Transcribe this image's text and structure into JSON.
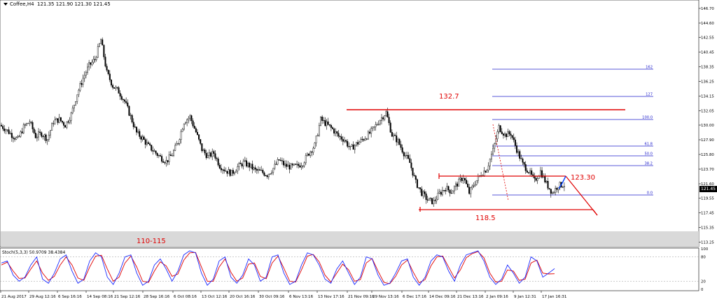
{
  "chart_title": {
    "symbol_tf": "Coffee,H4",
    "ohlc": "121.35 121.90 121.30 121.45"
  },
  "current_price": "121.45",
  "annotations": {
    "resistance_label": "132.7",
    "support_label": "118.5",
    "target_label": "123.30",
    "zone_label": "110-115"
  },
  "fib_levels": [
    "162",
    "127",
    "100.0",
    "61.8",
    "50.0",
    "38.2",
    "0.0"
  ],
  "stochastic": {
    "label": "Stoch(5,3,3) 50.9709 38.4384",
    "levels": [
      "100",
      "80",
      "20",
      "0"
    ]
  },
  "chart_data": [
    {
      "type": "candlestick",
      "y_ticks": [
        "146.70",
        "144.60",
        "142.55",
        "140.45",
        "138.35",
        "136.25",
        "134.15",
        "132.05",
        "130.00",
        "127.90",
        "125.80",
        "123.70",
        "121.60",
        "119.55",
        "117.45",
        "115.35",
        "113.25"
      ],
      "x_ticks": [
        "21 Aug 2017",
        "29 Aug 12:16",
        "6 Sep 16:16",
        "14 Sep 08:16",
        "21 Sep 12:16",
        "28 Sep 16:16",
        "6 Oct 08:16",
        "13 Oct 12:16",
        "20 Oct 16:16",
        "30 Oct 09:16",
        "6 Nov 13:16",
        "13 Nov 17:16",
        "21 Nov 09:16",
        "29 Nov 13:16",
        "6 Dec 17:16",
        "14 Dec 09:16",
        "21 Dec 13:16",
        "2 Jan 09:16",
        "9 Jan 12:31",
        "17 Jan 16:31"
      ],
      "ylim": [
        112.6,
        147.9
      ],
      "closes_sampled": [
        130.0,
        129.4,
        128.6,
        127.9,
        129.7,
        130.5,
        128.4,
        128.8,
        128.0,
        130.5,
        130.8,
        130.0,
        131.5,
        134.5,
        136.7,
        138.5,
        139.4,
        142.2,
        137.5,
        135.6,
        134.8,
        133.4,
        131.2,
        128.9,
        128.1,
        127.0,
        126.2,
        125.4,
        124.8,
        125.8,
        127.6,
        130.5,
        131.2,
        129.0,
        126.5,
        125.5,
        126.0,
        124.2,
        123.5,
        123.1,
        124.0,
        124.6,
        124.2,
        123.5,
        123.3,
        122.9,
        123.8,
        125.0,
        124.2,
        124.0,
        124.1,
        124.6,
        126.0,
        127.1,
        130.8,
        130.1,
        129.4,
        128.4,
        127.9,
        126.6,
        127.3,
        127.9,
        128.6,
        129.6,
        130.8,
        131.8,
        128.6,
        127.7,
        126.0,
        124.6,
        121.8,
        120.3,
        119.3,
        119.0,
        120.2,
        121.0,
        120.5,
        121.6,
        122.6,
        120.3,
        121.8,
        123.0,
        123.8,
        126.4,
        129.7,
        128.6,
        128.8,
        126.5,
        124.4,
        123.4,
        122.0,
        123.4,
        121.6,
        120.3,
        121.4,
        121.45
      ],
      "fib_prices": {
        "162": 138.0,
        "127": 134.1,
        "100.0": 130.8,
        "61.8": 127.0,
        "50.0": 125.6,
        "38.2": 124.2,
        "0.0": 120.0
      }
    },
    {
      "type": "line",
      "name": "Stoch(5,3,3)",
      "ylim": [
        0,
        100
      ],
      "main_sampled": [
        65,
        70,
        35,
        20,
        30,
        60,
        80,
        25,
        15,
        40,
        75,
        85,
        45,
        15,
        25,
        70,
        90,
        80,
        30,
        12,
        40,
        80,
        85,
        40,
        10,
        20,
        60,
        75,
        50,
        20,
        45,
        85,
        95,
        90,
        40,
        10,
        25,
        70,
        80,
        30,
        15,
        35,
        75,
        60,
        20,
        30,
        80,
        85,
        40,
        12,
        20,
        60,
        90,
        85,
        60,
        25,
        15,
        50,
        70,
        40,
        12,
        30,
        80,
        75,
        35,
        10,
        15,
        40,
        70,
        75,
        30,
        10,
        30,
        70,
        85,
        80,
        45,
        20,
        60,
        85,
        90,
        95,
        70,
        30,
        12,
        25,
        60,
        40,
        15,
        30,
        80,
        70,
        30,
        40,
        50.97
      ],
      "signal_sampled": [
        60,
        67,
        45,
        27,
        28,
        50,
        70,
        40,
        22,
        32,
        60,
        80,
        60,
        28,
        22,
        55,
        82,
        84,
        50,
        20,
        30,
        65,
        82,
        55,
        20,
        17,
        45,
        68,
        58,
        32,
        38,
        72,
        90,
        91,
        55,
        20,
        20,
        55,
        75,
        42,
        20,
        28,
        62,
        65,
        32,
        26,
        65,
        82,
        52,
        20,
        18,
        48,
        82,
        86,
        68,
        35,
        18,
        40,
        62,
        48,
        20,
        24,
        65,
        76,
        45,
        17,
        14,
        32,
        60,
        72,
        42,
        16,
        24,
        58,
        80,
        82,
        55,
        28,
        48,
        78,
        88,
        93,
        78,
        40,
        18,
        20,
        48,
        45,
        22,
        25,
        65,
        72,
        40,
        38,
        38.44
      ]
    }
  ]
}
